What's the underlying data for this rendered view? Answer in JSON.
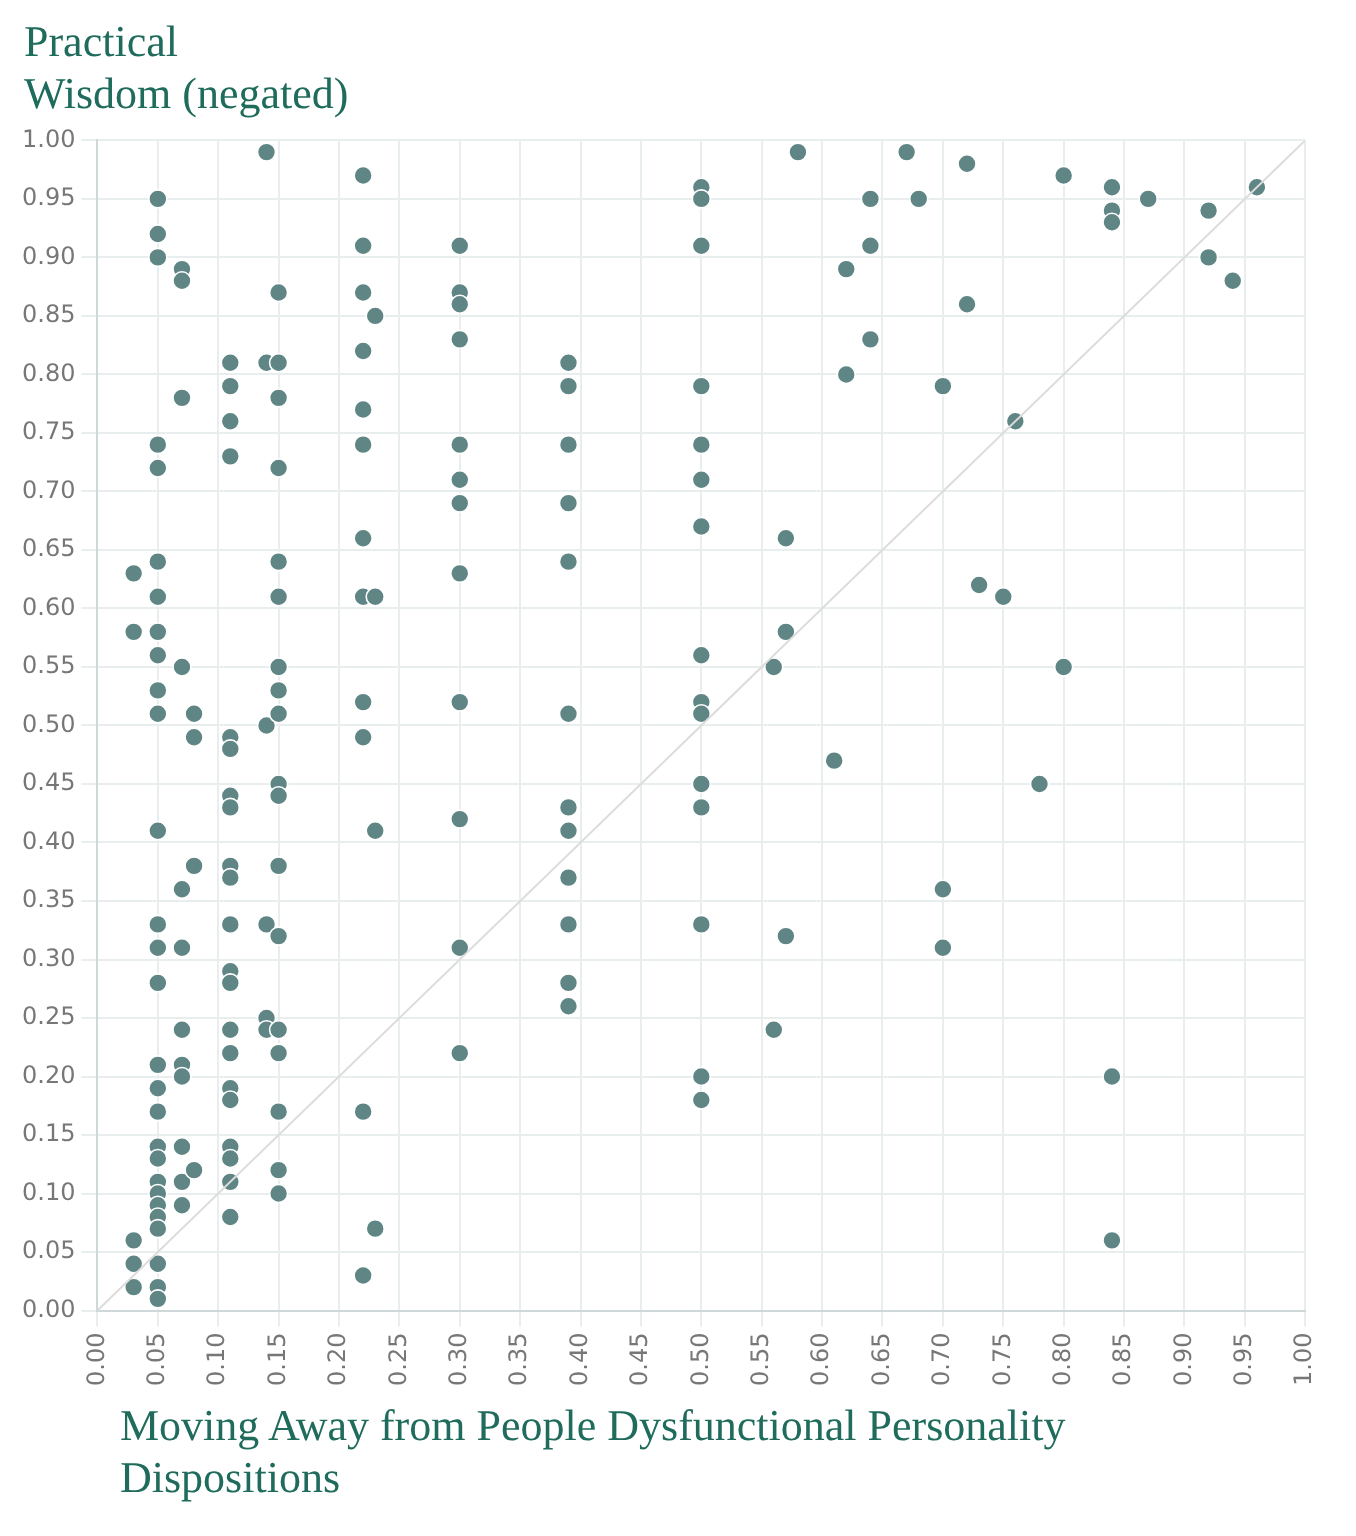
{
  "chart_data": {
    "type": "scatter",
    "ylabel": "Practical\nWisdom (negated)",
    "xlabel": "Moving Away from People Dysfunctional Personality Dispositions",
    "xlim": [
      0,
      1
    ],
    "ylim": [
      0,
      1
    ],
    "xticks": [
      {
        "value": 0,
        "label": "0.00"
      },
      {
        "value": 0.05,
        "label": "0.05"
      },
      {
        "value": 0.1,
        "label": "0.10"
      },
      {
        "value": 0.15,
        "label": "0.15"
      },
      {
        "value": 0.2,
        "label": "0.20"
      },
      {
        "value": 0.25,
        "label": "0.25"
      },
      {
        "value": 0.3,
        "label": "0.30"
      },
      {
        "value": 0.35,
        "label": "0.35"
      },
      {
        "value": 0.4,
        "label": "0.40"
      },
      {
        "value": 0.45,
        "label": "0.45"
      },
      {
        "value": 0.5,
        "label": "0.50"
      },
      {
        "value": 0.55,
        "label": "0.55"
      },
      {
        "value": 0.6,
        "label": "0.60"
      },
      {
        "value": 0.65,
        "label": "0.65"
      },
      {
        "value": 0.7,
        "label": "0.70"
      },
      {
        "value": 0.75,
        "label": "0.75"
      },
      {
        "value": 0.8,
        "label": "0.80"
      },
      {
        "value": 0.85,
        "label": "0.85"
      },
      {
        "value": 0.9,
        "label": "0.90"
      },
      {
        "value": 0.95,
        "label": "0.95"
      },
      {
        "value": 1,
        "label": "1.00"
      }
    ],
    "yticks": [
      {
        "value": 0,
        "label": "0.00"
      },
      {
        "value": 0.05,
        "label": "0.05"
      },
      {
        "value": 0.1,
        "label": "0.10"
      },
      {
        "value": 0.15,
        "label": "0.15"
      },
      {
        "value": 0.2,
        "label": "0.20"
      },
      {
        "value": 0.25,
        "label": "0.25"
      },
      {
        "value": 0.3,
        "label": "0.30"
      },
      {
        "value": 0.35,
        "label": "0.35"
      },
      {
        "value": 0.4,
        "label": "0.40"
      },
      {
        "value": 0.45,
        "label": "0.45"
      },
      {
        "value": 0.5,
        "label": "0.50"
      },
      {
        "value": 0.55,
        "label": "0.55"
      },
      {
        "value": 0.6,
        "label": "0.60"
      },
      {
        "value": 0.65,
        "label": "0.65"
      },
      {
        "value": 0.7,
        "label": "0.70"
      },
      {
        "value": 0.75,
        "label": "0.75"
      },
      {
        "value": 0.8,
        "label": "0.80"
      },
      {
        "value": 0.85,
        "label": "0.85"
      },
      {
        "value": 0.9,
        "label": "0.90"
      },
      {
        "value": 0.95,
        "label": "0.95"
      },
      {
        "value": 1,
        "label": "1.00"
      }
    ],
    "grid": true,
    "marker": "circle",
    "series": [
      {
        "type": "line",
        "color": "#dcdcdc",
        "x": [
          0,
          1
        ],
        "values": [
          0,
          1
        ],
        "marker": "none"
      },
      {
        "color": "#5f8585",
        "x": [
          0.03,
          0.03,
          0.03,
          0.03,
          0.03,
          0.05,
          0.05,
          0.05,
          0.05,
          0.05,
          0.05,
          0.05,
          0.05,
          0.05,
          0.05,
          0.05,
          0.05,
          0.05,
          0.05,
          0.05,
          0.05,
          0.05,
          0.05,
          0.05,
          0.05,
          0.05,
          0.05,
          0.05,
          0.05,
          0.05,
          0.05,
          0.05,
          0.05,
          0.07,
          0.07,
          0.07,
          0.07,
          0.07,
          0.07,
          0.07,
          0.07,
          0.07,
          0.07,
          0.07,
          0.07,
          0.08,
          0.08,
          0.08,
          0.08,
          0.11,
          0.11,
          0.11,
          0.11,
          0.11,
          0.11,
          0.11,
          0.11,
          0.11,
          0.11,
          0.11,
          0.11,
          0.11,
          0.11,
          0.11,
          0.11,
          0.11,
          0.11,
          0.11,
          0.11,
          0.11,
          0.14,
          0.14,
          0.14,
          0.14,
          0.14,
          0.14,
          0.15,
          0.15,
          0.15,
          0.15,
          0.15,
          0.15,
          0.15,
          0.15,
          0.15,
          0.15,
          0.15,
          0.15,
          0.15,
          0.15,
          0.15,
          0.15,
          0.15,
          0.15,
          0.22,
          0.22,
          0.22,
          0.22,
          0.22,
          0.22,
          0.22,
          0.22,
          0.22,
          0.22,
          0.22,
          0.22,
          0.23,
          0.23,
          0.23,
          0.23,
          0.3,
          0.3,
          0.3,
          0.3,
          0.3,
          0.3,
          0.3,
          0.3,
          0.3,
          0.3,
          0.3,
          0.3,
          0.39,
          0.39,
          0.39,
          0.39,
          0.39,
          0.39,
          0.39,
          0.39,
          0.39,
          0.39,
          0.39,
          0.39,
          0.5,
          0.5,
          0.5,
          0.5,
          0.5,
          0.5,
          0.5,
          0.5,
          0.5,
          0.5,
          0.5,
          0.5,
          0.5,
          0.5,
          0.5,
          0.56,
          0.56,
          0.57,
          0.57,
          0.57,
          0.58,
          0.61,
          0.62,
          0.62,
          0.64,
          0.64,
          0.64,
          0.67,
          0.68,
          0.7,
          0.7,
          0.7,
          0.72,
          0.72,
          0.73,
          0.75,
          0.76,
          0.78,
          0.8,
          0.8,
          0.84,
          0.84,
          0.84,
          0.84,
          0.84,
          0.87,
          0.92,
          0.92,
          0.94,
          0.96
        ],
        "values": [
          0.63,
          0.58,
          0.06,
          0.04,
          0.02,
          0.95,
          0.92,
          0.9,
          0.74,
          0.72,
          0.64,
          0.61,
          0.58,
          0.56,
          0.53,
          0.51,
          0.41,
          0.33,
          0.31,
          0.28,
          0.21,
          0.19,
          0.17,
          0.14,
          0.13,
          0.11,
          0.1,
          0.09,
          0.08,
          0.07,
          0.04,
          0.02,
          0.01,
          0.89,
          0.88,
          0.78,
          0.55,
          0.36,
          0.31,
          0.24,
          0.21,
          0.2,
          0.14,
          0.11,
          0.09,
          0.51,
          0.49,
          0.38,
          0.12,
          0.81,
          0.79,
          0.76,
          0.73,
          0.49,
          0.48,
          0.44,
          0.43,
          0.38,
          0.37,
          0.33,
          0.29,
          0.28,
          0.24,
          0.22,
          0.19,
          0.18,
          0.14,
          0.13,
          0.11,
          0.08,
          0.99,
          0.81,
          0.5,
          0.33,
          0.25,
          0.24,
          0.87,
          0.81,
          0.78,
          0.72,
          0.64,
          0.61,
          0.55,
          0.53,
          0.51,
          0.45,
          0.44,
          0.38,
          0.32,
          0.24,
          0.22,
          0.17,
          0.12,
          0.1,
          0.97,
          0.91,
          0.87,
          0.82,
          0.77,
          0.74,
          0.66,
          0.61,
          0.52,
          0.49,
          0.17,
          0.03,
          0.85,
          0.61,
          0.41,
          0.07,
          0.91,
          0.87,
          0.86,
          0.83,
          0.74,
          0.71,
          0.69,
          0.63,
          0.52,
          0.42,
          0.31,
          0.22,
          0.81,
          0.79,
          0.74,
          0.69,
          0.64,
          0.51,
          0.43,
          0.41,
          0.37,
          0.33,
          0.28,
          0.26,
          0.96,
          0.95,
          0.91,
          0.79,
          0.74,
          0.71,
          0.67,
          0.56,
          0.52,
          0.51,
          0.45,
          0.43,
          0.33,
          0.2,
          0.18,
          0.55,
          0.24,
          0.66,
          0.58,
          0.32,
          0.99,
          0.47,
          0.89,
          0.8,
          0.95,
          0.91,
          0.83,
          0.99,
          0.95,
          0.79,
          0.36,
          0.31,
          0.98,
          0.86,
          0.62,
          0.61,
          0.76,
          0.45,
          0.97,
          0.55,
          0.96,
          0.94,
          0.93,
          0.2,
          0.06,
          0.95,
          0.94,
          0.9,
          0.88,
          0.96
        ]
      }
    ]
  }
}
